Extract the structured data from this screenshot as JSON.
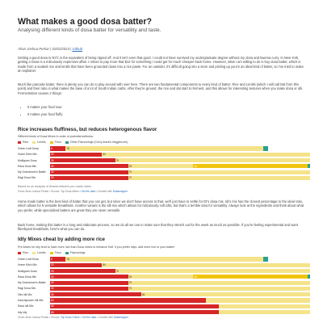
{
  "article": {
    "title": "What makes a good dosa batter?",
    "subtitle": "Analysing different kinds of dosa batter for versatility and taste.",
    "author": "Ahan Joshua Perkar",
    "date": "02/02/2023",
    "github": "Github",
    "para1": "Getting a good dosa in NYC is the equivalent of being ripped off. And it isn't even that good. I could not have survived my undergraduate degree without my dosa and kwema curry. In New York, getting a Dosa is a ridiculously expensive affair. I refuse to pay more that $12 for something I could get for much cheaper back home. However, what I am willing to do is buy dosa batter, which is made from a soaked rice and lentils that have been grounded down into a rice paste. For an outsider, it's difficult going into a store and picking up you're an ideal kind of batter, so I've tried to make an explainer.",
    "para2": "Much like pancake batter, there is plenty you can do to play around with over here. There are two fundamental components to every kind of batter: Rice and Lentils (which I will call Dal from this point) and their ratio is what makes the base of a lot of South Indian carbs. After they're ground, the rice and dal start to ferment, and this allows for interesting textures when you make dosa or idli. Fermentation causes 2 things:",
    "bullets": [
      "It makes your food sour",
      "It makes your food fluffy"
    ],
    "para3": "Home made batter is the best kind of batter that you can get, but since we don't have access to that, we'll just have to settle for ID's dosa mix. Idi's mix has the closest percentage to the ideal ratio, which allows for 5 versatile breakfasts. Another variant is the idli mix which allows for ridiculously soft idlis, but that's a terrible idea for versatility. Always look at the ingredients and think about what you prefer, while specialized batters are great they are never versatile.",
    "para4": "Back home, making this batter is a long and elaborate process, so we do all we can to make sure that they stretch out for the week as much as possible. If you're feeling experimental and want fiberbyant breakfasts, here's what you can do."
  },
  "chart1": {
    "title": "Rice increases fluffiness, but reduces heterogenous flavor",
    "subtitle": "Different kinds of Dosa Mixes in order of potential softness:",
    "legend": [
      {
        "name": "Rice",
        "color": "#d62728"
      },
      {
        "name": "Lentils",
        "color": "#f5e38a"
      },
      {
        "name": "Flour",
        "color": "#f1c40f"
      },
      {
        "name": "Other Flavourings (Curry leaves,Veggies,etc)",
        "color": "#2ca08f"
      }
    ],
    "source_prefix": "Based on an analysis of Ahanta Maisel's pre-made mixes",
    "source_line": "Chart: Ahan Joshua Perkar • Source: Top Dosa Mixes •",
    "source_link1": "Get the data",
    "source_mid": "• Created with",
    "source_link2": "Datawrapper"
  },
  "chart2": {
    "title": "Idly Mixes cheat by adding more rice",
    "subtitle": "Pre-Mixes for idly tend to have more rice than Dosa mixes to enhance fluff. If you prefer idlys, add more rice to your batter!",
    "legend": [
      {
        "name": "Rice",
        "color": "#d62728"
      },
      {
        "name": "Lentils",
        "color": "#f5e38a"
      },
      {
        "name": "Flour",
        "color": "#f1c40f"
      },
      {
        "name": "Flavourings",
        "color": "#2ca08f"
      }
    ],
    "source_line": "Chart: Ahan Joshua Perkar • Source:",
    "source_link1": "Top Dosa Online",
    "source_mid": "•",
    "source_link2": "Get the data",
    "source_mid2": "• Created with",
    "source_link3": "Datawrapper"
  },
  "chart_data": [
    {
      "type": "bar",
      "stacked": true,
      "orientation": "horizontal",
      "title": "Rice increases fluffiness, but reduces heterogenous flavor",
      "categories": [
        "Green Leaf Dosa",
        "Home Kitch Mix",
        "Mulligram Dosa",
        "Rava Dosa Mix",
        "My Grandmom's Batter",
        "Ragi Dosa Mix"
      ],
      "series": [
        {
          "name": "Rice",
          "color": "#d62728",
          "values": [
            6,
            20,
            25,
            30,
            30,
            30
          ],
          "labels": [
            "6",
            "20",
            "25",
            "30",
            "30",
            "30"
          ]
        },
        {
          "name": "Lentils",
          "color": "#f5e38a",
          "values": [
            76,
            80,
            75,
            25,
            70,
            70
          ],
          "labels": [
            "76",
            "80",
            "75",
            "25",
            "70",
            "70"
          ]
        },
        {
          "name": "Flour",
          "color": "#f1c40f",
          "values": [
            0,
            0,
            0,
            44,
            0,
            0
          ],
          "labels": [
            "",
            "",
            "",
            "44",
            "",
            ""
          ]
        },
        {
          "name": "Other Flavourings (Curry leaves,Veggies,etc)",
          "color": "#2ca08f",
          "values": [
            2,
            0,
            0,
            1,
            0,
            0
          ],
          "labels": [
            "",
            "",
            "",
            "",
            "",
            ""
          ]
        }
      ],
      "xlim": [
        0,
        100
      ]
    },
    {
      "type": "bar",
      "stacked": true,
      "orientation": "horizontal",
      "title": "Idly Mixes cheat by adding more rice",
      "categories": [
        "Green Leaf Dosa",
        "Home Kitch Mix",
        "Mulligram Dosa",
        "Rava Dosa Mix",
        "My Grandmom's Batter",
        "Ragi Dosa Mix",
        "Gits Idli Mix",
        "Kanchipuram Idli Mix",
        "Rava Idli Mix",
        "Idly idly"
      ],
      "series": [
        {
          "name": "Rice",
          "color": "#d62728",
          "values": [
            6,
            20,
            25,
            30,
            30,
            30,
            35,
            60,
            65,
            65
          ],
          "labels": [
            "6",
            "20",
            "25",
            "30",
            "30",
            "30",
            "35",
            "60",
            "65",
            "65"
          ]
        },
        {
          "name": "Lentils",
          "color": "#f5e38a",
          "values": [
            76,
            80,
            75,
            25,
            70,
            70,
            65,
            40,
            35,
            35
          ],
          "labels": [
            "76",
            "80",
            "75",
            "25",
            "70",
            "70",
            "65",
            "",
            "",
            ""
          ]
        },
        {
          "name": "Flour",
          "color": "#f1c40f",
          "values": [
            0,
            0,
            0,
            44,
            0,
            0,
            0,
            0,
            0,
            0
          ],
          "labels": [
            "",
            "",
            "",
            "44",
            "",
            "",
            "",
            "",
            "",
            ""
          ]
        },
        {
          "name": "Flavourings",
          "color": "#2ca08f",
          "values": [
            2,
            0,
            0,
            1,
            0,
            0,
            0,
            0,
            0,
            0
          ],
          "labels": [
            "",
            "",
            "",
            "",
            "",
            "",
            "",
            "",
            "",
            ""
          ]
        }
      ],
      "xlim": [
        0,
        100
      ]
    }
  ]
}
